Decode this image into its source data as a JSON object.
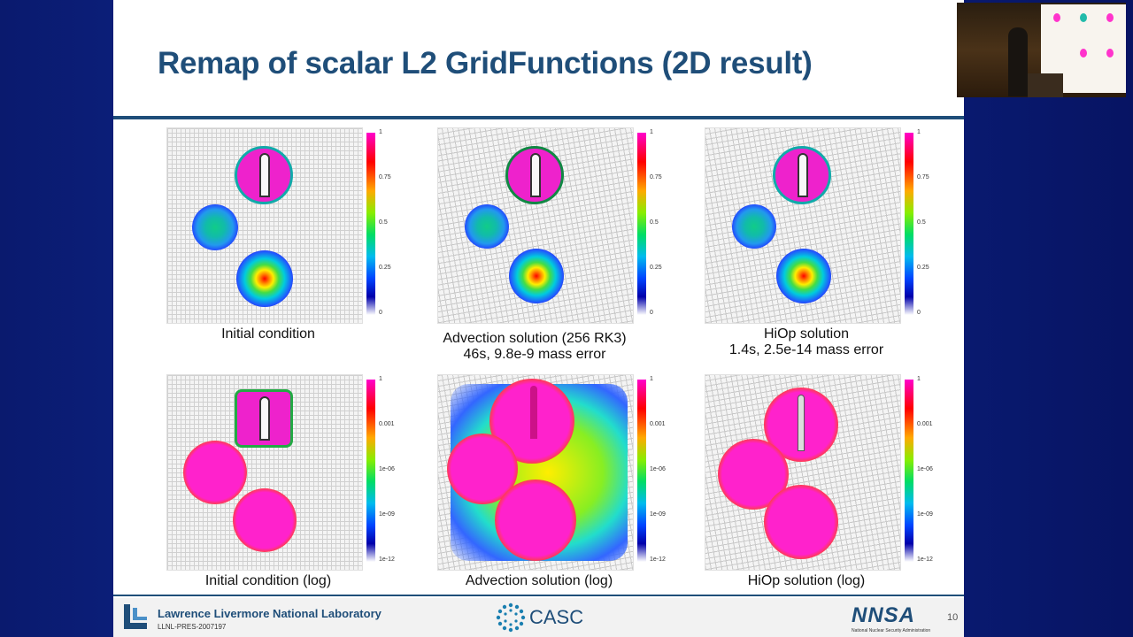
{
  "slide": {
    "title": "Remap of scalar L2 GridFunctions (2D result)",
    "captions": {
      "initial": "Initial condition",
      "advection_line1": "Advection solution (256 RK3)",
      "advection_line2": "46s, 9.8e-9 mass error",
      "hiop_line1": "HiOp solution",
      "hiop_line2": "1.4s, 2.5e-14 mass error",
      "initial_log": "Initial condition (log)",
      "advection_log": "Advection solution (log)",
      "hiop_log": "HiOp solution (log)"
    },
    "linear_ticks": [
      "1",
      "0.75",
      "0.5",
      "0.25",
      "0"
    ],
    "log_ticks": [
      "1",
      "0.001",
      "1e-06",
      "1e-09",
      "1e-12"
    ]
  },
  "footer": {
    "lab_name": "Lawrence Livermore National Laboratory",
    "doc_id": "LLNL-PRES-2007197",
    "casc": "CASC",
    "nnsa": "NNSA",
    "nnsa_sub": "National Nuclear Security Administration",
    "page_number": "10"
  },
  "colors": {
    "title": "#1f4e79",
    "background": "#0f2a96",
    "magenta": "#ee22cc"
  }
}
